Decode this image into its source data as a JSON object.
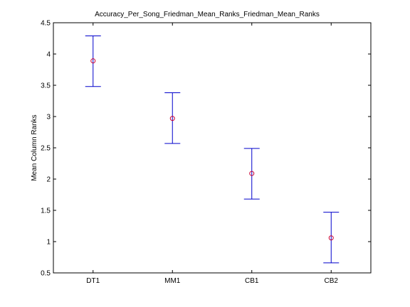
{
  "chart_data": {
    "type": "scatter",
    "title": "Accuracy_Per_Song_Friedman_Mean_Ranks_Friedman_Mean_Ranks",
    "xlabel": "",
    "ylabel": "Mean Column Ranks",
    "categories": [
      "DT1",
      "MM1",
      "CB1",
      "CB2"
    ],
    "values": [
      3.89,
      2.97,
      2.09,
      1.06
    ],
    "lower": [
      3.48,
      2.57,
      1.68,
      0.66
    ],
    "upper": [
      4.29,
      3.38,
      2.49,
      1.47
    ],
    "ylim": [
      0.5,
      4.5
    ],
    "yticks": [
      "0.5",
      "1",
      "1.5",
      "2",
      "2.5",
      "3",
      "3.5",
      "4",
      "4.5"
    ],
    "grid": false,
    "marker": "circle",
    "colors": {
      "errorbar": "#0000cc",
      "marker": "#cc0033",
      "axes": "#000000"
    }
  }
}
